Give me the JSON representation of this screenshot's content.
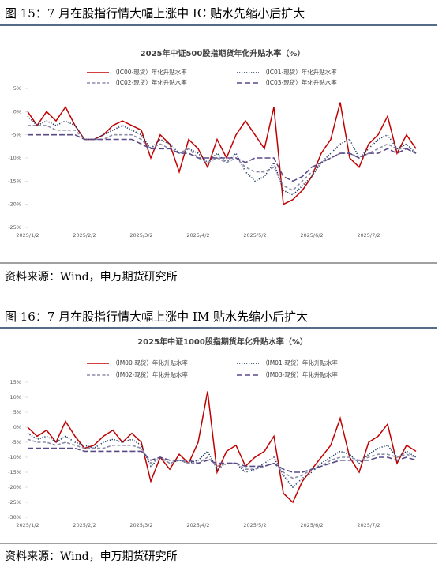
{
  "captions": [
    "图 15：7 月在股指行情大幅上涨中 IC 贴水先缩小后扩大",
    "图 16：7 月在股指行情大幅上涨中 IM 贴水先缩小后扩大"
  ],
  "sources": [
    "资料来源：Wind，申万期货研究所",
    "资料来源：Wind，申万期货研究所"
  ],
  "chart_data": [
    {
      "type": "line",
      "title": "2025年中证500股指期货年化升贴水率（%）",
      "categories": [
        "2025/1/2",
        null,
        null,
        null,
        null,
        null,
        "2025/2/2",
        null,
        null,
        null,
        null,
        null,
        "2025/3/2",
        null,
        null,
        null,
        null,
        null,
        "2025/4/2",
        null,
        null,
        null,
        null,
        null,
        "2025/5/2",
        null,
        null,
        null,
        null,
        null,
        "2025/6/2",
        null,
        null,
        null,
        null,
        null,
        "2025/7/2",
        null,
        null,
        null,
        null,
        null
      ],
      "ylim": [
        -25,
        5
      ],
      "yticks": [
        {
          "value": 5,
          "label": "5%"
        },
        {
          "value": 0,
          "label": "0%"
        },
        {
          "value": -5,
          "label": "-5%"
        },
        {
          "value": -10,
          "label": "-10%"
        },
        {
          "value": -15,
          "label": "-15%"
        },
        {
          "value": -20,
          "label": "-20%"
        },
        {
          "value": -25,
          "label": "-25%"
        }
      ],
      "series": [
        {
          "name": "（IC00-现货）年化升贴水率",
          "color": "#c00000",
          "style": "solid",
          "values": [
            0,
            -3,
            0,
            -2,
            1,
            -3,
            -6,
            -6,
            -5,
            -3,
            -2,
            -3,
            -4,
            -10,
            -5,
            -7,
            -13,
            -6,
            -8,
            -12,
            -6,
            -10,
            -5,
            -2,
            -5,
            -8,
            1,
            -20,
            -19,
            -17,
            -14,
            -9,
            -6,
            2,
            -10,
            -12,
            -7,
            -5,
            -1,
            -9,
            -5,
            -8
          ]
        },
        {
          "name": "（IC01-现货）年化升贴水率",
          "color": "#1f3864",
          "style": "dotted",
          "values": [
            -1,
            -3,
            -2,
            -3,
            -2,
            -3,
            -6,
            -6,
            -5,
            -4,
            -3,
            -4,
            -5,
            -8,
            -6,
            -7,
            -9,
            -8,
            -9,
            -11,
            -9,
            -11,
            -9,
            -13,
            -15,
            -14,
            -11,
            -17,
            -18,
            -16,
            -14,
            -11,
            -9,
            -7,
            -6,
            -10,
            -8,
            -6,
            -5,
            -8,
            -7,
            -9
          ]
        },
        {
          "name": "（IC02-现货）年化升贴水率",
          "color": "#8c8ca8",
          "style": "dashed",
          "values": [
            -3,
            -3,
            -3,
            -4,
            -4,
            -4,
            -6,
            -6,
            -6,
            -5,
            -5,
            -5,
            -6,
            -8,
            -7,
            -8,
            -9,
            -8,
            -10,
            -11,
            -10,
            -11,
            -10,
            -12,
            -13,
            -13,
            -12,
            -16,
            -17,
            -15,
            -13,
            -11,
            -10,
            -9,
            -9,
            -10,
            -9,
            -8,
            -7,
            -8,
            -8,
            -9
          ]
        },
        {
          "name": "（IC03-现货）年化升贴水率",
          "color": "#5b4a8a",
          "style": "longdash",
          "values": [
            -5,
            -5,
            -5,
            -5,
            -5,
            -5,
            -6,
            -6,
            -6,
            -6,
            -6,
            -6,
            -7,
            -8,
            -8,
            -8,
            -9,
            -9,
            -10,
            -10,
            -10,
            -10,
            -10,
            -11,
            -10,
            -10,
            -10,
            -14,
            -15,
            -14,
            -12,
            -11,
            -10,
            -9,
            -9,
            -10,
            -9,
            -9,
            -8,
            -9,
            -8,
            -9
          ]
        }
      ]
    },
    {
      "type": "line",
      "title": "2025年中证1000股指期货年化升贴水率（%）",
      "categories": [
        "2025/1/2",
        null,
        null,
        null,
        null,
        null,
        "2025/2/2",
        null,
        null,
        null,
        null,
        null,
        "2025/3/2",
        null,
        null,
        null,
        null,
        null,
        "2025/4/2",
        null,
        null,
        null,
        null,
        null,
        "2025/5/2",
        null,
        null,
        null,
        null,
        null,
        "2025/6/2",
        null,
        null,
        null,
        null,
        null,
        "2025/7/2",
        null,
        null,
        null,
        null,
        null
      ],
      "ylim": [
        -30,
        15
      ],
      "yticks": [
        {
          "value": 15,
          "label": "15%"
        },
        {
          "value": 10,
          "label": "10%"
        },
        {
          "value": 5,
          "label": "5%"
        },
        {
          "value": 0,
          "label": "0%"
        },
        {
          "value": -5,
          "label": "-5%"
        },
        {
          "value": -10,
          "label": "-10%"
        },
        {
          "value": -15,
          "label": "-15%"
        },
        {
          "value": -20,
          "label": "-20%"
        },
        {
          "value": -25,
          "label": "-25%"
        },
        {
          "value": -30,
          "label": "-30%"
        }
      ],
      "series": [
        {
          "name": "（IM00-现货）年化升贴水率",
          "color": "#c00000",
          "style": "solid",
          "values": [
            0,
            -3,
            -1,
            -5,
            2,
            -3,
            -7,
            -6,
            -3,
            -1,
            -5,
            -2,
            -5,
            -18,
            -10,
            -14,
            -9,
            -12,
            -5,
            12,
            -15,
            -8,
            -6,
            -13,
            -10,
            -8,
            -3,
            -22,
            -25,
            -18,
            -14,
            -10,
            -6,
            3,
            -10,
            -15,
            -5,
            -3,
            1,
            -12,
            -6,
            -8
          ]
        },
        {
          "name": "（IM01-现货）年化升贴水率",
          "color": "#1f3864",
          "style": "dotted",
          "values": [
            -2,
            -4,
            -3,
            -5,
            -3,
            -5,
            -6,
            -7,
            -5,
            -4,
            -5,
            -4,
            -6,
            -13,
            -10,
            -12,
            -11,
            -12,
            -11,
            -8,
            -14,
            -12,
            -12,
            -15,
            -14,
            -12,
            -10,
            -16,
            -20,
            -17,
            -15,
            -12,
            -10,
            -8,
            -9,
            -12,
            -9,
            -7,
            -6,
            -10,
            -8,
            -10
          ]
        },
        {
          "name": "（IM02-现货）年化升贴水率",
          "color": "#8c8ca8",
          "style": "dashed",
          "values": [
            -4,
            -5,
            -5,
            -6,
            -5,
            -6,
            -7,
            -7,
            -7,
            -6,
            -6,
            -6,
            -7,
            -12,
            -10,
            -12,
            -11,
            -12,
            -12,
            -10,
            -13,
            -12,
            -12,
            -14,
            -14,
            -13,
            -12,
            -15,
            -17,
            -16,
            -14,
            -13,
            -11,
            -10,
            -10,
            -11,
            -10,
            -9,
            -9,
            -10,
            -9,
            -10
          ]
        },
        {
          "name": "（IM03-现货）年化升贴水率",
          "color": "#5b4a8a",
          "style": "longdash",
          "values": [
            -7,
            -7,
            -7,
            -7,
            -7,
            -7,
            -8,
            -8,
            -8,
            -8,
            -8,
            -8,
            -8,
            -11,
            -10,
            -11,
            -11,
            -11,
            -12,
            -11,
            -12,
            -12,
            -12,
            -13,
            -13,
            -13,
            -12,
            -14,
            -15,
            -15,
            -14,
            -13,
            -12,
            -11,
            -11,
            -11,
            -11,
            -10,
            -10,
            -11,
            -10,
            -11
          ]
        }
      ]
    }
  ]
}
